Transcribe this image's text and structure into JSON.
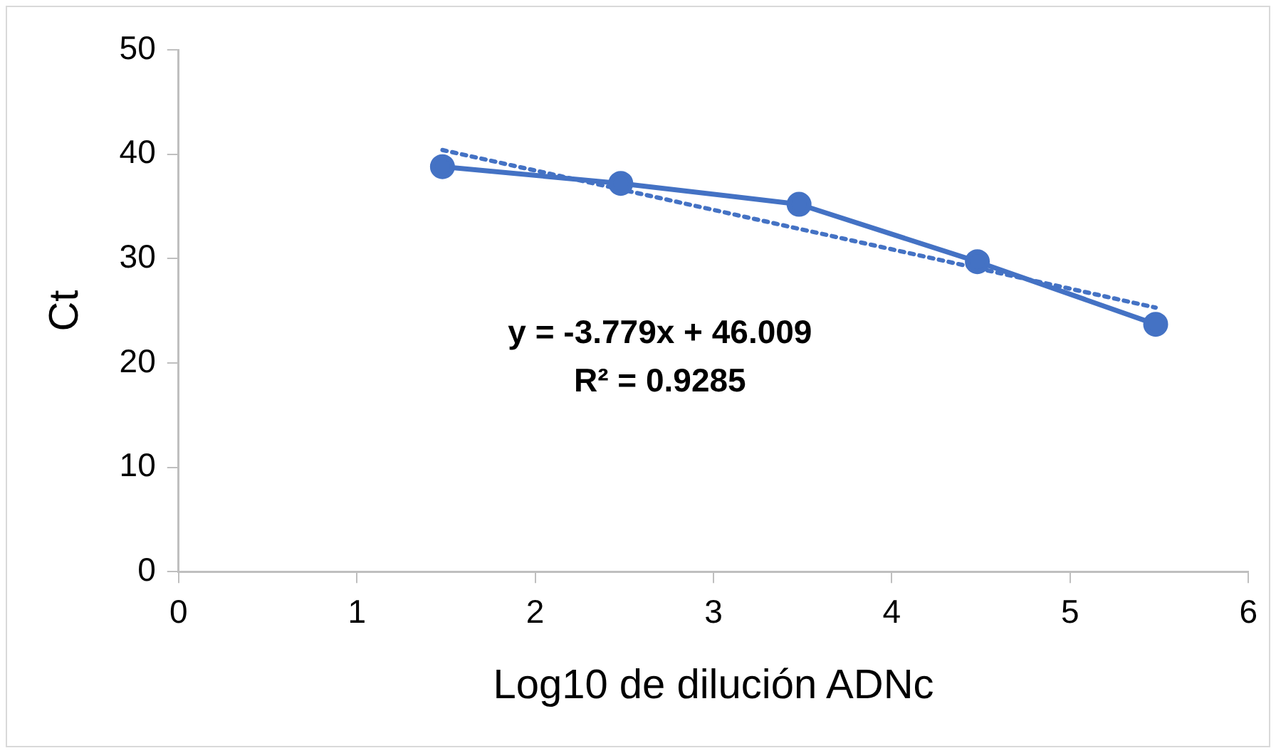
{
  "chart_data": {
    "type": "line",
    "xlabel": "Log10 de dilución ADNc",
    "ylabel": "Ct",
    "xlim": [
      0,
      6
    ],
    "xticks": [
      0,
      1,
      2,
      3,
      4,
      5,
      6
    ],
    "ylim": [
      0,
      50
    ],
    "yticks": [
      0,
      10,
      20,
      30,
      40,
      50
    ],
    "grid": false,
    "legend": false,
    "series": [
      {
        "color": "#4472c4",
        "x": [
          1.48,
          2.48,
          3.48,
          4.48,
          5.48
        ],
        "values": [
          38.8,
          37.2,
          35.2,
          29.7,
          23.7
        ],
        "marker": "circle",
        "line_style": "solid"
      },
      {
        "color": "#4472c4",
        "x": [
          1.48,
          5.48
        ],
        "values": [
          40.4,
          25.3
        ],
        "marker": "none",
        "line_style": "dotted"
      }
    ],
    "annotations": [
      "y = -3.779x + 46.009",
      "R² = 0.9285"
    ]
  }
}
